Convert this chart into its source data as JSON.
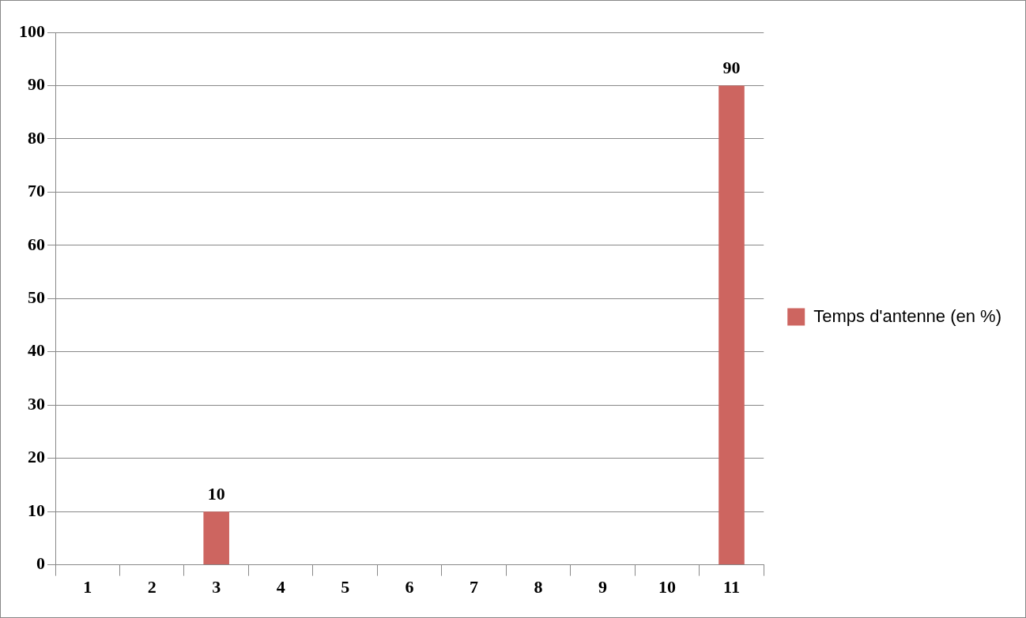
{
  "chart_data": {
    "type": "bar",
    "categories": [
      "1",
      "2",
      "3",
      "4",
      "5",
      "6",
      "7",
      "8",
      "9",
      "10",
      "11"
    ],
    "series": [
      {
        "name": "Temps d'antenne (en %)",
        "color": "#cd6560",
        "values": [
          0,
          0,
          10,
          0,
          0,
          0,
          0,
          0,
          0,
          0,
          90
        ],
        "value_labels": [
          null,
          null,
          "10",
          null,
          null,
          null,
          null,
          null,
          null,
          null,
          "90"
        ]
      }
    ],
    "ylim": [
      0,
      100
    ],
    "yticks": [
      0,
      10,
      20,
      30,
      40,
      50,
      60,
      70,
      80,
      90,
      100
    ],
    "grid": "y",
    "legend": "right"
  }
}
